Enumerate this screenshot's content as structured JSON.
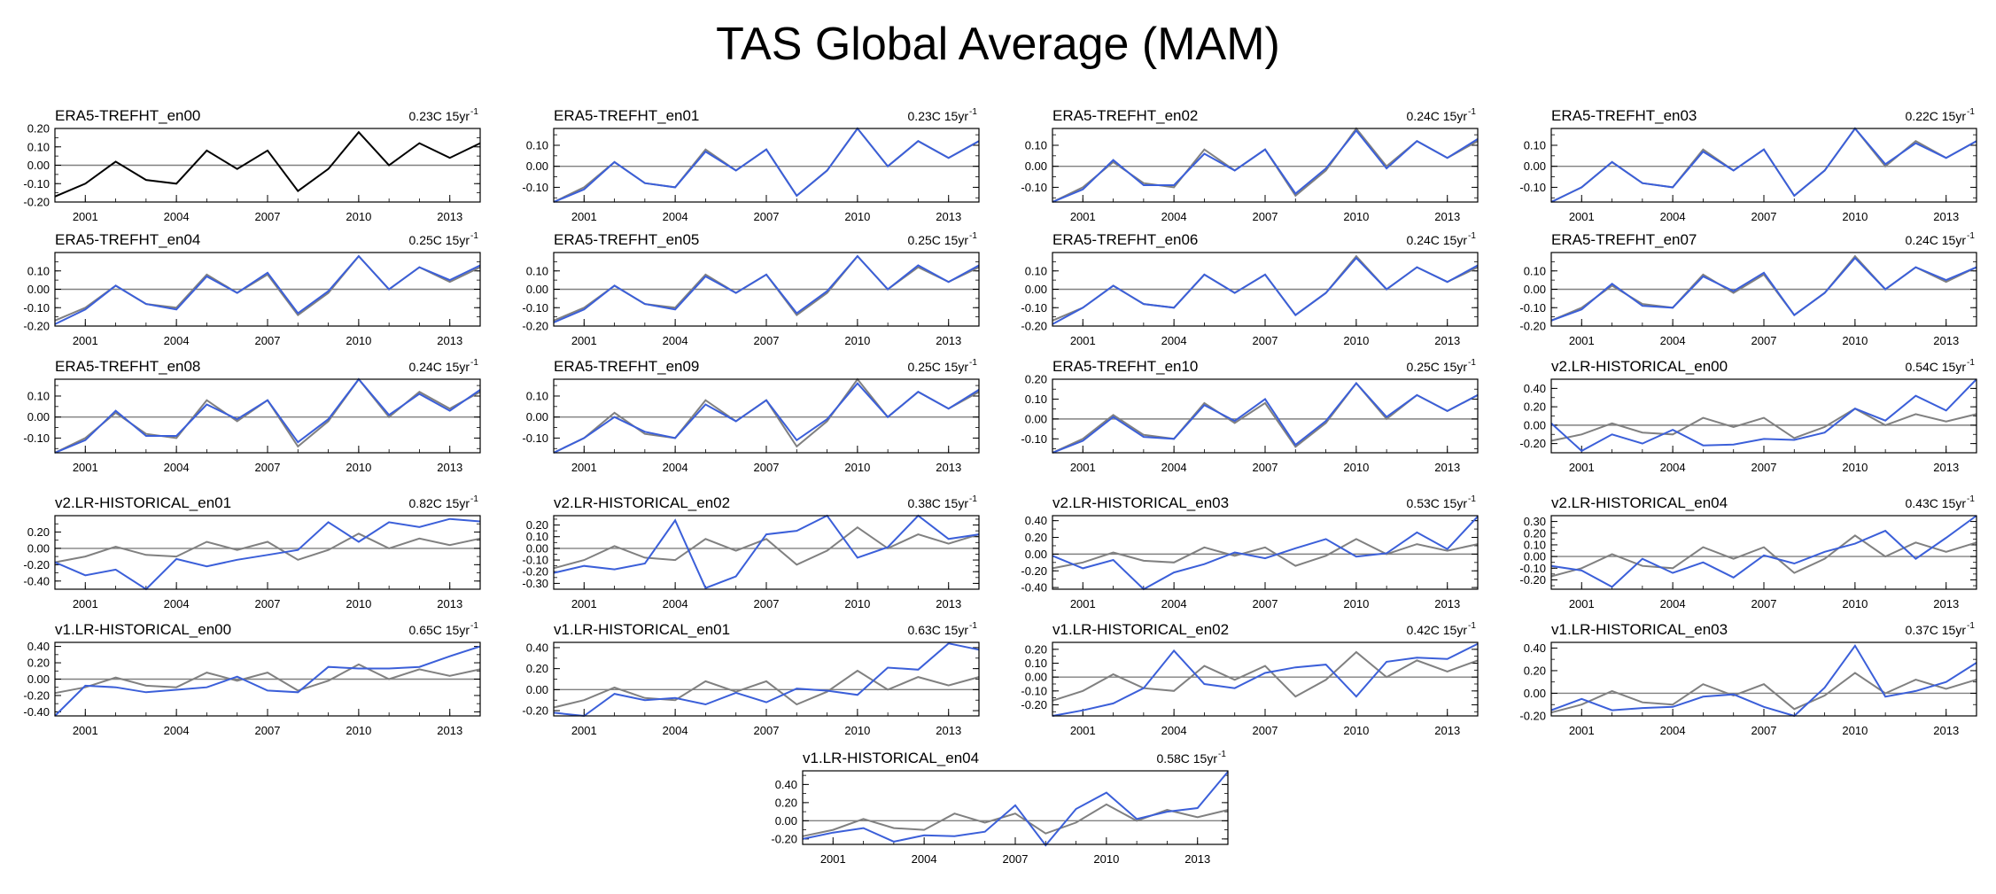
{
  "title": "TAS Global Average (MAM)",
  "colors": {
    "reference": "#808080",
    "model": "#3b5fd9",
    "axis": "#000000",
    "zero_line": "#808080",
    "ref_only": "#000000"
  },
  "chart_data": {
    "type": "line",
    "x": [
      2000,
      2001,
      2002,
      2003,
      2004,
      2005,
      2006,
      2007,
      2008,
      2009,
      2010,
      2011,
      2012,
      2013,
      2014
    ],
    "xticks": [
      2001,
      2004,
      2007,
      2010,
      2013
    ],
    "xlim": [
      2000,
      2014
    ],
    "reference": {
      "name": "ERA5",
      "values": [
        -0.17,
        -0.1,
        0.02,
        -0.08,
        -0.1,
        0.08,
        -0.02,
        0.08,
        -0.14,
        -0.02,
        0.18,
        0.0,
        0.12,
        0.04,
        0.12
      ]
    },
    "panels": [
      {
        "title": "ERA5-TREFHT_en00",
        "trend": "0.23C 15yr",
        "ylim": [
          -0.2,
          0.2
        ],
        "yticks": [
          "0.20",
          "0.10",
          "0.00",
          "-0.10",
          "-0.20"
        ],
        "ytick_values": [
          0.2,
          0.1,
          0.0,
          -0.1,
          -0.2
        ],
        "show_reference": false,
        "series_color": "ref_only",
        "values": [
          -0.17,
          -0.1,
          0.02,
          -0.08,
          -0.1,
          0.08,
          -0.02,
          0.08,
          -0.14,
          -0.02,
          0.18,
          0.0,
          0.12,
          0.04,
          0.12
        ]
      },
      {
        "title": "ERA5-TREFHT_en01",
        "trend": "0.23C 15yr",
        "ylim": [
          -0.17,
          0.18
        ],
        "yticks": [
          "0.10",
          "0.00",
          "-0.10"
        ],
        "ytick_values": [
          0.1,
          0.0,
          -0.1
        ],
        "show_reference": true,
        "values": [
          -0.17,
          -0.11,
          0.02,
          -0.08,
          -0.1,
          0.07,
          -0.02,
          0.08,
          -0.14,
          -0.02,
          0.18,
          0.0,
          0.12,
          0.04,
          0.12
        ]
      },
      {
        "title": "ERA5-TREFHT_en02",
        "trend": "0.24C 15yr",
        "ylim": [
          -0.17,
          0.18
        ],
        "yticks": [
          "0.10",
          "0.00",
          "-0.10"
        ],
        "ytick_values": [
          0.1,
          0.0,
          -0.1
        ],
        "show_reference": true,
        "values": [
          -0.17,
          -0.11,
          0.03,
          -0.09,
          -0.09,
          0.06,
          -0.02,
          0.08,
          -0.13,
          -0.01,
          0.17,
          -0.01,
          0.12,
          0.04,
          0.13
        ]
      },
      {
        "title": "ERA5-TREFHT_en03",
        "trend": "0.22C 15yr",
        "ylim": [
          -0.17,
          0.18
        ],
        "yticks": [
          "0.10",
          "0.00",
          "-0.10"
        ],
        "ytick_values": [
          0.1,
          0.0,
          -0.1
        ],
        "show_reference": true,
        "values": [
          -0.17,
          -0.1,
          0.02,
          -0.08,
          -0.1,
          0.07,
          -0.02,
          0.08,
          -0.14,
          -0.02,
          0.18,
          0.01,
          0.11,
          0.04,
          0.12
        ]
      },
      {
        "title": "ERA5-TREFHT_en04",
        "trend": "0.25C 15yr",
        "ylim": [
          -0.2,
          0.2
        ],
        "yticks": [
          "0.10",
          "0.00",
          "-0.10",
          "-0.20"
        ],
        "ytick_values": [
          0.1,
          0.0,
          -0.1,
          -0.2
        ],
        "show_reference": true,
        "values": [
          -0.19,
          -0.11,
          0.02,
          -0.08,
          -0.11,
          0.07,
          -0.02,
          0.09,
          -0.13,
          -0.01,
          0.18,
          0.0,
          0.12,
          0.05,
          0.13
        ]
      },
      {
        "title": "ERA5-TREFHT_en05",
        "trend": "0.25C 15yr",
        "ylim": [
          -0.2,
          0.2
        ],
        "yticks": [
          "0.10",
          "0.00",
          "-0.10",
          "-0.20"
        ],
        "ytick_values": [
          0.1,
          0.0,
          -0.1,
          -0.2
        ],
        "show_reference": true,
        "values": [
          -0.18,
          -0.11,
          0.02,
          -0.08,
          -0.11,
          0.07,
          -0.02,
          0.08,
          -0.13,
          -0.01,
          0.18,
          0.0,
          0.13,
          0.04,
          0.13
        ]
      },
      {
        "title": "ERA5-TREFHT_en06",
        "trend": "0.24C 15yr",
        "ylim": [
          -0.2,
          0.2
        ],
        "yticks": [
          "0.10",
          "0.00",
          "-0.10",
          "-0.20"
        ],
        "ytick_values": [
          0.1,
          0.0,
          -0.1,
          -0.2
        ],
        "show_reference": true,
        "values": [
          -0.19,
          -0.1,
          0.02,
          -0.08,
          -0.1,
          0.08,
          -0.02,
          0.08,
          -0.14,
          -0.02,
          0.17,
          0.0,
          0.12,
          0.04,
          0.13
        ]
      },
      {
        "title": "ERA5-TREFHT_en07",
        "trend": "0.24C 15yr",
        "ylim": [
          -0.2,
          0.2
        ],
        "yticks": [
          "0.10",
          "0.00",
          "-0.10",
          "-0.20"
        ],
        "ytick_values": [
          0.1,
          0.0,
          -0.1,
          -0.2
        ],
        "show_reference": true,
        "values": [
          -0.17,
          -0.11,
          0.03,
          -0.09,
          -0.1,
          0.07,
          -0.01,
          0.09,
          -0.14,
          -0.02,
          0.17,
          0.0,
          0.12,
          0.05,
          0.12
        ]
      },
      {
        "title": "ERA5-TREFHT_en08",
        "trend": "0.24C 15yr",
        "ylim": [
          -0.17,
          0.18
        ],
        "yticks": [
          "0.10",
          "0.00",
          "-0.10"
        ],
        "ytick_values": [
          0.1,
          0.0,
          -0.1
        ],
        "show_reference": true,
        "values": [
          -0.17,
          -0.11,
          0.03,
          -0.09,
          -0.09,
          0.06,
          -0.01,
          0.08,
          -0.12,
          -0.01,
          0.18,
          0.01,
          0.11,
          0.03,
          0.13
        ]
      },
      {
        "title": "ERA5-TREFHT_en09",
        "trend": "0.25C 15yr",
        "ylim": [
          -0.17,
          0.18
        ],
        "yticks": [
          "0.10",
          "0.00",
          "-0.10"
        ],
        "ytick_values": [
          0.1,
          0.0,
          -0.1
        ],
        "show_reference": true,
        "values": [
          -0.17,
          -0.1,
          0.0,
          -0.07,
          -0.1,
          0.06,
          -0.02,
          0.08,
          -0.11,
          -0.01,
          0.16,
          0.0,
          0.12,
          0.04,
          0.13
        ]
      },
      {
        "title": "ERA5-TREFHT_en10",
        "trend": "0.25C 15yr",
        "ylim": [
          -0.17,
          0.2
        ],
        "yticks": [
          "0.20",
          "0.10",
          "0.00",
          "-0.10"
        ],
        "ytick_values": [
          0.2,
          0.1,
          0.0,
          -0.1
        ],
        "show_reference": true,
        "values": [
          -0.17,
          -0.11,
          0.01,
          -0.09,
          -0.1,
          0.07,
          -0.01,
          0.1,
          -0.13,
          -0.01,
          0.18,
          0.01,
          0.12,
          0.04,
          0.12
        ]
      },
      {
        "title": "v2.LR-HISTORICAL_en00",
        "trend": "0.54C 15yr",
        "ylim": [
          -0.3,
          0.5
        ],
        "yticks": [
          "0.40",
          "0.20",
          "0.00",
          "-0.20"
        ],
        "ytick_values": [
          0.4,
          0.2,
          0.0,
          -0.2
        ],
        "show_reference": true,
        "values": [
          0.02,
          -0.28,
          -0.1,
          -0.2,
          -0.05,
          -0.22,
          -0.21,
          -0.15,
          -0.16,
          -0.08,
          0.18,
          0.05,
          0.32,
          0.16,
          0.5
        ]
      },
      {
        "title": "v2.LR-HISTORICAL_en01",
        "trend": "0.82C 15yr",
        "ylim": [
          -0.5,
          0.4
        ],
        "yticks": [
          "0.20",
          "0.00",
          "-0.20",
          "-0.40"
        ],
        "ytick_values": [
          0.2,
          0.0,
          -0.2,
          -0.4
        ],
        "show_reference": true,
        "values": [
          -0.17,
          -0.33,
          -0.26,
          -0.5,
          -0.13,
          -0.22,
          -0.14,
          -0.08,
          -0.02,
          0.32,
          0.08,
          0.32,
          0.26,
          0.36,
          0.33
        ]
      },
      {
        "title": "v2.LR-HISTORICAL_en02",
        "trend": "0.38C 15yr",
        "ylim": [
          -0.35,
          0.28
        ],
        "yticks": [
          "0.20",
          "0.10",
          "0.00",
          "-0.10",
          "-0.20",
          "-0.30"
        ],
        "ytick_values": [
          0.2,
          0.1,
          0.0,
          -0.1,
          -0.2,
          -0.3
        ],
        "show_reference": true,
        "values": [
          -0.21,
          -0.15,
          -0.18,
          -0.13,
          0.24,
          -0.34,
          -0.24,
          0.12,
          0.15,
          0.28,
          -0.08,
          0.01,
          0.28,
          0.08,
          0.12
        ]
      },
      {
        "title": "v2.LR-HISTORICAL_en03",
        "trend": "0.53C 15yr",
        "ylim": [
          -0.42,
          0.46
        ],
        "yticks": [
          "0.40",
          "0.20",
          "0.00",
          "-0.20",
          "-0.40"
        ],
        "ytick_values": [
          0.4,
          0.2,
          0.0,
          -0.2,
          -0.4
        ],
        "show_reference": true,
        "values": [
          -0.02,
          -0.17,
          -0.07,
          -0.42,
          -0.22,
          -0.12,
          0.02,
          -0.05,
          0.07,
          0.18,
          -0.03,
          0.01,
          0.26,
          0.06,
          0.45
        ]
      },
      {
        "title": "v2.LR-HISTORICAL_en04",
        "trend": "0.43C 15yr",
        "ylim": [
          -0.28,
          0.35
        ],
        "yticks": [
          "0.30",
          "0.20",
          "0.10",
          "0.00",
          "-0.10",
          "-0.20"
        ],
        "ytick_values": [
          0.3,
          0.2,
          0.1,
          0.0,
          -0.1,
          -0.2
        ],
        "show_reference": true,
        "values": [
          -0.08,
          -0.12,
          -0.26,
          -0.02,
          -0.14,
          -0.05,
          -0.18,
          0.01,
          -0.06,
          0.04,
          0.11,
          0.22,
          -0.02,
          0.16,
          0.35
        ]
      },
      {
        "title": "v1.LR-HISTORICAL_en00",
        "trend": "0.65C 15yr",
        "ylim": [
          -0.45,
          0.45
        ],
        "yticks": [
          "0.40",
          "0.20",
          "0.00",
          "-0.20",
          "-0.40"
        ],
        "ytick_values": [
          0.4,
          0.2,
          0.0,
          -0.2,
          -0.4
        ],
        "show_reference": true,
        "values": [
          -0.45,
          -0.08,
          -0.1,
          -0.16,
          -0.13,
          -0.1,
          0.03,
          -0.14,
          -0.16,
          0.15,
          0.13,
          0.13,
          0.15,
          0.28,
          0.4
        ]
      },
      {
        "title": "v1.LR-HISTORICAL_en01",
        "trend": "0.63C 15yr",
        "ylim": [
          -0.25,
          0.45
        ],
        "yticks": [
          "0.40",
          "0.20",
          "0.00",
          "-0.20"
        ],
        "ytick_values": [
          0.4,
          0.2,
          0.0,
          -0.2
        ],
        "show_reference": true,
        "values": [
          -0.22,
          -0.25,
          -0.04,
          -0.1,
          -0.08,
          -0.14,
          -0.03,
          -0.12,
          0.01,
          -0.01,
          -0.05,
          0.21,
          0.19,
          0.44,
          0.38
        ]
      },
      {
        "title": "v1.LR-HISTORICAL_en02",
        "trend": "0.42C 15yr",
        "ylim": [
          -0.28,
          0.25
        ],
        "yticks": [
          "0.20",
          "0.10",
          "0.00",
          "-0.10",
          "-0.20"
        ],
        "ytick_values": [
          0.2,
          0.1,
          0.0,
          -0.1,
          -0.2
        ],
        "show_reference": true,
        "values": [
          -0.28,
          -0.24,
          -0.19,
          -0.08,
          0.19,
          -0.05,
          -0.08,
          0.03,
          0.07,
          0.09,
          -0.14,
          0.11,
          0.14,
          0.13,
          0.24
        ]
      },
      {
        "title": "v1.LR-HISTORICAL_en03",
        "trend": "0.37C 15yr",
        "ylim": [
          -0.2,
          0.45
        ],
        "yticks": [
          "0.40",
          "0.20",
          "0.00",
          "-0.20"
        ],
        "ytick_values": [
          0.4,
          0.2,
          0.0,
          -0.2
        ],
        "show_reference": true,
        "values": [
          -0.15,
          -0.05,
          -0.15,
          -0.13,
          -0.12,
          -0.03,
          -0.01,
          -0.12,
          -0.2,
          0.05,
          0.42,
          -0.03,
          0.02,
          0.1,
          0.27
        ]
      },
      {
        "title": "v1.LR-HISTORICAL_en04",
        "trend": "0.58C 15yr",
        "ylim": [
          -0.26,
          0.55
        ],
        "yticks": [
          "0.40",
          "0.20",
          "0.00",
          "-0.20"
        ],
        "ytick_values": [
          0.4,
          0.2,
          0.0,
          -0.2
        ],
        "show_reference": true,
        "values": [
          -0.2,
          -0.13,
          -0.08,
          -0.23,
          -0.16,
          -0.17,
          -0.12,
          0.17,
          -0.27,
          0.13,
          0.31,
          0.02,
          0.1,
          0.14,
          0.54
        ]
      }
    ]
  }
}
